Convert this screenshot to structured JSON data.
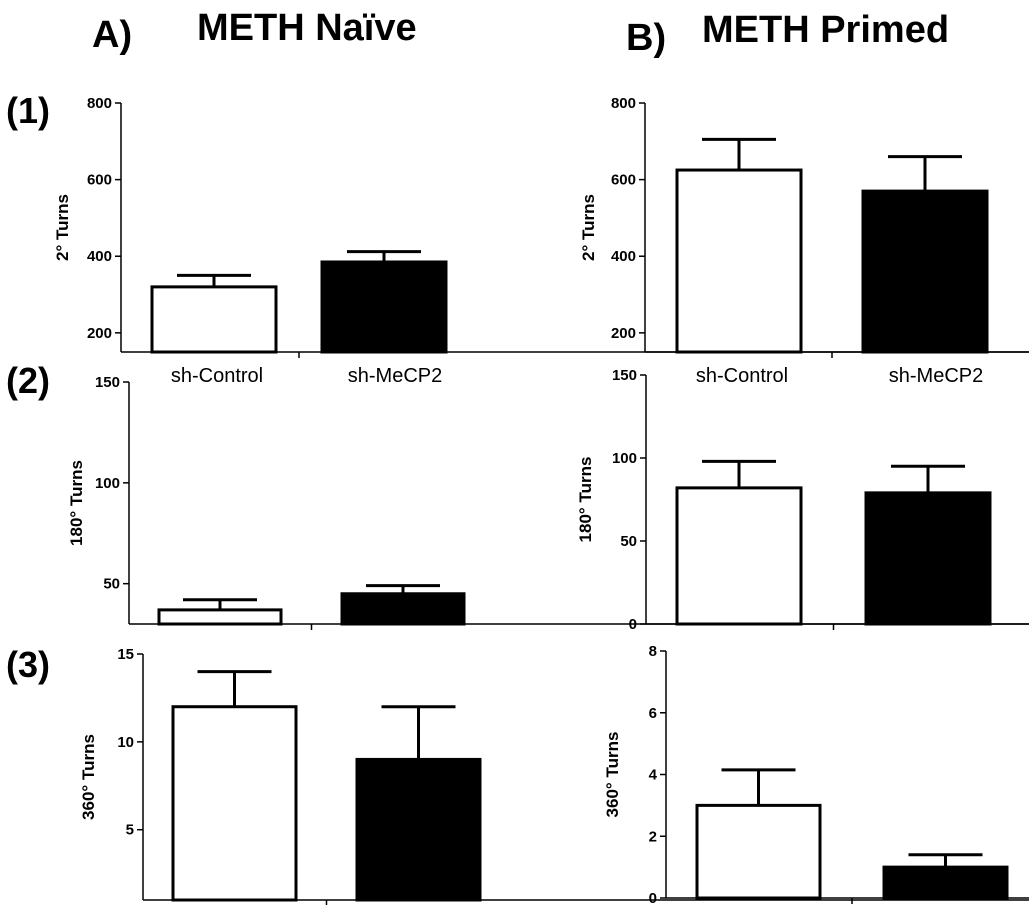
{
  "columns": [
    {
      "letter": "A)",
      "title": "METH Naïve"
    },
    {
      "letter": "B)",
      "title": "METH Primed"
    }
  ],
  "rows": [
    "(1)",
    "(2)",
    "(3)"
  ],
  "chart_data": [
    {
      "id": "A1",
      "type": "bar",
      "categories": [
        "sh-Control",
        "sh-MeCP2"
      ],
      "category_labels_shown": true,
      "values": [
        320,
        385
      ],
      "errors": [
        30,
        27
      ],
      "fills": [
        "#ffffff",
        "#000000"
      ],
      "ylabel": "2° Turns",
      "ylim": [
        150,
        800
      ],
      "yticks": [
        200,
        400,
        600,
        800
      ]
    },
    {
      "id": "B1",
      "type": "bar",
      "categories": [
        "sh-Control",
        "sh-MeCP2"
      ],
      "category_labels_shown": true,
      "values": [
        625,
        570
      ],
      "errors": [
        80,
        90
      ],
      "fills": [
        "#ffffff",
        "#000000"
      ],
      "ylabel": "2° Turns",
      "ylim": [
        150,
        800
      ],
      "yticks": [
        200,
        400,
        600,
        800
      ]
    },
    {
      "id": "A2",
      "type": "bar",
      "categories": [
        "sh-Control",
        "sh-MeCP2"
      ],
      "category_labels_shown": false,
      "values": [
        37,
        45
      ],
      "errors": [
        5,
        4
      ],
      "fills": [
        "#ffffff",
        "#000000"
      ],
      "ylabel": "180° Turns",
      "ylim": [
        30,
        150
      ],
      "yticks": [
        50,
        100,
        150
      ]
    },
    {
      "id": "B2",
      "type": "bar",
      "categories": [
        "sh-Control",
        "sh-MeCP2"
      ],
      "category_labels_shown": false,
      "values": [
        82,
        79
      ],
      "errors": [
        16,
        16
      ],
      "fills": [
        "#ffffff",
        "#000000"
      ],
      "ylabel": "180° Turns",
      "ylim": [
        0,
        150
      ],
      "yticks": [
        0,
        50,
        100,
        150
      ]
    },
    {
      "id": "A3",
      "type": "bar",
      "categories": [
        "sh-Control",
        "sh-MeCP2"
      ],
      "category_labels_shown": false,
      "values": [
        12,
        9
      ],
      "errors": [
        2,
        3
      ],
      "fills": [
        "#ffffff",
        "#000000"
      ],
      "ylabel": "360° Turns",
      "ylim": [
        1,
        15
      ],
      "yticks": [
        5,
        10,
        15
      ]
    },
    {
      "id": "B3",
      "type": "bar",
      "categories": [
        "sh-Control",
        "sh-MeCP2"
      ],
      "category_labels_shown": false,
      "values": [
        3,
        1
      ],
      "errors": [
        1.15,
        0.4
      ],
      "fills": [
        "#ffffff",
        "#000000"
      ],
      "ylabel": "360° Turns",
      "ylim": [
        0,
        8
      ],
      "yticks": [
        0,
        2,
        4,
        6,
        8
      ]
    }
  ]
}
